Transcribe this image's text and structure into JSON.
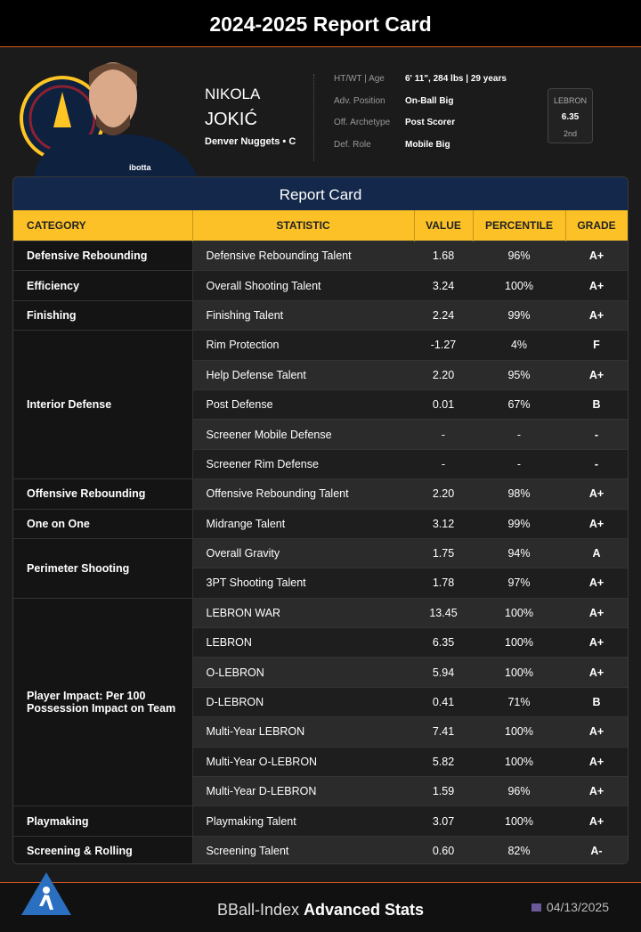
{
  "header": {
    "title": "2024-2025 Report Card"
  },
  "player": {
    "first_name": "NIKOLA",
    "last_name": "JOKIĆ",
    "team": "Denver Nuggets • C",
    "details": [
      {
        "label": "HT/WT | Age",
        "value": "6' 11\", 284 lbs | 29 years"
      },
      {
        "label": "Adv. Position",
        "value": "On-Ball Big"
      },
      {
        "label": "Off. Archetype",
        "value": "Post Scorer"
      },
      {
        "label": "Def. Role",
        "value": "Mobile Big"
      }
    ],
    "badge": {
      "label": "LEBRON",
      "value": "6.35",
      "rank": "2nd"
    }
  },
  "table": {
    "title": "Report Card",
    "columns": [
      "CATEGORY",
      "STATISTIC",
      "VALUE",
      "PERCENTILE",
      "GRADE"
    ],
    "groups": [
      {
        "category": "Defensive Rebounding",
        "rows": [
          [
            "Defensive Rebounding Talent",
            "1.68",
            "96%",
            "A+"
          ]
        ]
      },
      {
        "category": "Efficiency",
        "rows": [
          [
            "Overall Shooting Talent",
            "3.24",
            "100%",
            "A+"
          ]
        ]
      },
      {
        "category": "Finishing",
        "rows": [
          [
            "Finishing Talent",
            "2.24",
            "99%",
            "A+"
          ]
        ]
      },
      {
        "category": "Interior Defense",
        "rows": [
          [
            "Rim Protection",
            "-1.27",
            "4%",
            "F"
          ],
          [
            "Help Defense Talent",
            "2.20",
            "95%",
            "A+"
          ],
          [
            "Post Defense",
            "0.01",
            "67%",
            "B"
          ],
          [
            "Screener Mobile Defense",
            "-",
            "-",
            "-"
          ],
          [
            "Screener Rim Defense",
            "-",
            "-",
            "-"
          ]
        ]
      },
      {
        "category": "Offensive Rebounding",
        "rows": [
          [
            "Offensive Rebounding Talent",
            "2.20",
            "98%",
            "A+"
          ]
        ]
      },
      {
        "category": "One on One",
        "rows": [
          [
            "Midrange Talent",
            "3.12",
            "99%",
            "A+"
          ]
        ]
      },
      {
        "category": "Perimeter Shooting",
        "rows": [
          [
            "Overall Gravity",
            "1.75",
            "94%",
            "A"
          ],
          [
            "3PT Shooting Talent",
            "1.78",
            "97%",
            "A+"
          ]
        ]
      },
      {
        "category": "Player Impact: Per 100 Possession Impact on Team",
        "rows": [
          [
            "LEBRON WAR",
            "13.45",
            "100%",
            "A+"
          ],
          [
            "LEBRON",
            "6.35",
            "100%",
            "A+"
          ],
          [
            "O-LEBRON",
            "5.94",
            "100%",
            "A+"
          ],
          [
            "D-LEBRON",
            "0.41",
            "71%",
            "B"
          ],
          [
            "Multi-Year LEBRON",
            "7.41",
            "100%",
            "A+"
          ],
          [
            "Multi-Year O-LEBRON",
            "5.82",
            "100%",
            "A+"
          ],
          [
            "Multi-Year D-LEBRON",
            "1.59",
            "96%",
            "A+"
          ]
        ]
      },
      {
        "category": "Playmaking",
        "rows": [
          [
            "Playmaking Talent",
            "3.07",
            "100%",
            "A+"
          ]
        ]
      },
      {
        "category": "Screening & Rolling",
        "rows": [
          [
            "Screening Talent",
            "0.60",
            "82%",
            "A-"
          ]
        ]
      }
    ]
  },
  "footer": {
    "brand": "BBall-Index",
    "brand_bold": "Advanced Stats",
    "date": "04/13/2025"
  }
}
